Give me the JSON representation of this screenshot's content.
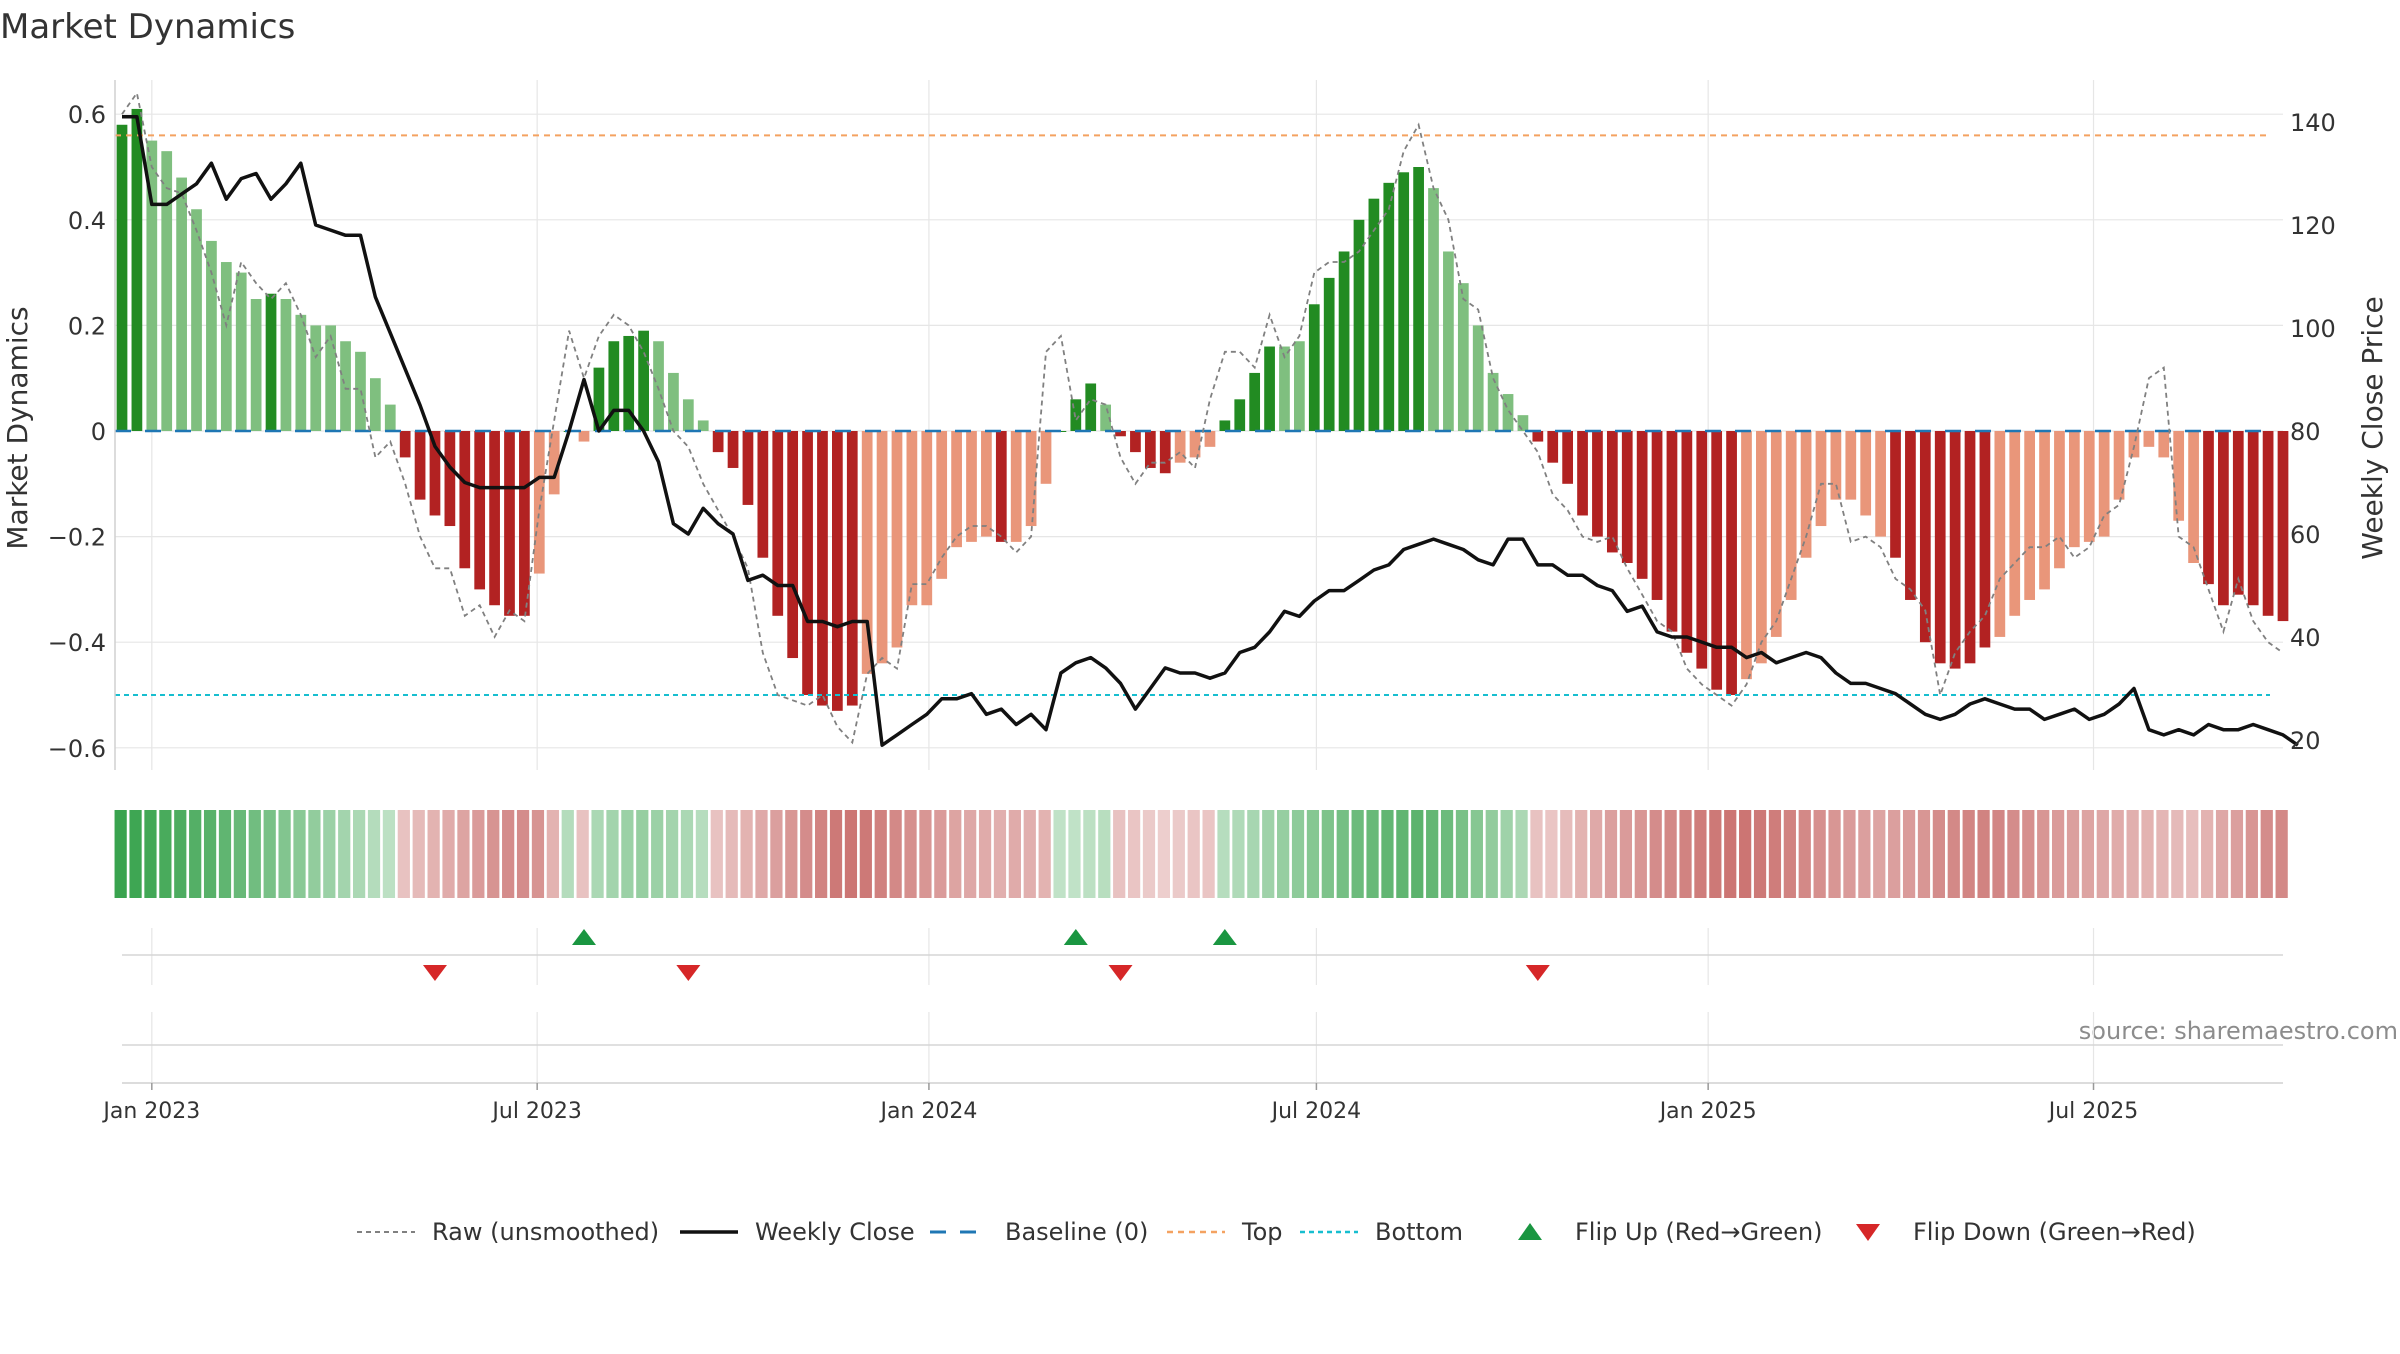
{
  "title": "Market Dynamics",
  "source": "source: sharemaestro.com",
  "colors": {
    "strong_green": "#228b22",
    "light_green": "#7fbf7f",
    "strong_red": "#b22222",
    "light_red": "#e9967a",
    "close_line": "#111111",
    "raw_line": "#808080",
    "baseline": "#1f77b4",
    "top": "#f4a261",
    "bottom": "#17becf",
    "flip_up": "#1a9641",
    "flip_down": "#d62728",
    "grid": "#e6e6e6"
  },
  "chart_data": {
    "type": "bar",
    "title": "Market Dynamics",
    "ylabel": "Market Dynamics",
    "y2label": "Weekly Close Price",
    "ylim": [
      -0.65,
      0.65
    ],
    "y2lim": [
      17,
      146
    ],
    "yticks": [
      0.6,
      0.4,
      0.2,
      0,
      -0.2,
      -0.4,
      -0.6
    ],
    "ytick_labels": [
      "0.6",
      "0.4",
      "0.2",
      "0",
      "−0.2",
      "−0.4",
      "−0.6"
    ],
    "y2ticks": [
      140,
      120,
      100,
      80,
      60,
      40,
      20
    ],
    "xticks": [
      {
        "date": "2023-01-01",
        "label": "Jan 2023"
      },
      {
        "date": "2023-07-01",
        "label": "Jul 2023"
      },
      {
        "date": "2024-01-01",
        "label": "Jan 2024"
      },
      {
        "date": "2024-07-01",
        "label": "Jul 2024"
      },
      {
        "date": "2025-01-01",
        "label": "Jan 2025"
      },
      {
        "date": "2025-07-01",
        "label": "Jul 2025"
      }
    ],
    "grid": true,
    "legend_position": "bottom",
    "first_week": "2022-12-18",
    "last_week": "2025-09-28",
    "reference_lines": {
      "baseline": 0,
      "top": 0.56,
      "bottom": -0.5
    },
    "momentum": [
      0.58,
      0.61,
      0.55,
      0.53,
      0.48,
      0.42,
      0.36,
      0.32,
      0.3,
      0.25,
      0.26,
      0.25,
      0.22,
      0.2,
      0.2,
      0.17,
      0.15,
      0.1,
      0.05,
      -0.05,
      -0.13,
      -0.16,
      -0.18,
      -0.26,
      -0.3,
      -0.33,
      -0.35,
      -0.35,
      -0.27,
      -0.12,
      0.0,
      -0.02,
      0.12,
      0.17,
      0.18,
      0.19,
      0.17,
      0.11,
      0.06,
      0.02,
      -0.04,
      -0.07,
      -0.14,
      -0.24,
      -0.35,
      -0.43,
      -0.5,
      -0.52,
      -0.53,
      -0.52,
      -0.46,
      -0.44,
      -0.41,
      -0.33,
      -0.33,
      -0.28,
      -0.22,
      -0.21,
      -0.2,
      -0.21,
      -0.21,
      -0.18,
      -0.1,
      0.0,
      0.06,
      0.09,
      0.05,
      -0.01,
      -0.04,
      -0.07,
      -0.08,
      -0.06,
      -0.05,
      -0.03,
      0.02,
      0.06,
      0.11,
      0.16,
      0.16,
      0.17,
      0.24,
      0.29,
      0.34,
      0.4,
      0.44,
      0.47,
      0.49,
      0.5,
      0.46,
      0.34,
      0.28,
      0.2,
      0.11,
      0.07,
      0.03,
      -0.02,
      -0.06,
      -0.1,
      -0.16,
      -0.2,
      -0.23,
      -0.25,
      -0.28,
      -0.32,
      -0.38,
      -0.42,
      -0.45,
      -0.49,
      -0.5,
      -0.47,
      -0.44,
      -0.39,
      -0.32,
      -0.24,
      -0.18,
      -0.13,
      -0.13,
      -0.16,
      -0.2,
      -0.24,
      -0.32,
      -0.4,
      -0.44,
      -0.45,
      -0.44,
      -0.41,
      -0.39,
      -0.35,
      -0.32,
      -0.3,
      -0.26,
      -0.22,
      -0.21,
      -0.2,
      -0.13,
      -0.05,
      -0.03,
      -0.05,
      -0.17,
      -0.25,
      -0.29,
      -0.33,
      -0.31,
      -0.33,
      -0.35,
      -0.36
    ],
    "colors": [
      "dg",
      "dg",
      "lg",
      "lg",
      "lg",
      "lg",
      "lg",
      "lg",
      "lg",
      "lg",
      "dg",
      "lg",
      "lg",
      "lg",
      "lg",
      "lg",
      "lg",
      "lg",
      "lg",
      "dr",
      "dr",
      "dr",
      "dr",
      "dr",
      "dr",
      "dr",
      "dr",
      "dr",
      "lr",
      "lr",
      "dg",
      "lr",
      "dg",
      "dg",
      "dg",
      "dg",
      "lg",
      "lg",
      "lg",
      "lg",
      "dr",
      "dr",
      "dr",
      "dr",
      "dr",
      "dr",
      "dr",
      "dr",
      "dr",
      "dr",
      "lr",
      "lr",
      "lr",
      "lr",
      "lr",
      "lr",
      "lr",
      "lr",
      "lr",
      "dr",
      "lr",
      "lr",
      "lr",
      "dg",
      "dg",
      "dg",
      "lg",
      "dr",
      "dr",
      "dr",
      "dr",
      "lr",
      "lr",
      "lr",
      "dg",
      "dg",
      "dg",
      "dg",
      "lg",
      "lg",
      "dg",
      "dg",
      "dg",
      "dg",
      "dg",
      "dg",
      "dg",
      "dg",
      "lg",
      "lg",
      "lg",
      "lg",
      "lg",
      "lg",
      "lg",
      "dr",
      "dr",
      "dr",
      "dr",
      "dr",
      "dr",
      "dr",
      "dr",
      "dr",
      "dr",
      "dr",
      "dr",
      "dr",
      "dr",
      "lr",
      "lr",
      "lr",
      "lr",
      "lr",
      "lr",
      "lr",
      "lr",
      "lr",
      "lr",
      "dr",
      "dr",
      "dr",
      "dr",
      "dr",
      "dr",
      "dr",
      "lr",
      "lr",
      "lr",
      "lr",
      "lr",
      "lr",
      "lr",
      "lr",
      "lr",
      "lr",
      "lr",
      "lr",
      "lr",
      "lr",
      "dr",
      "dr",
      "dr",
      "dr",
      "dr",
      "dr",
      "dr",
      "dr"
    ],
    "strip_alpha": [
      0.95,
      0.92,
      0.9,
      0.87,
      0.85,
      0.82,
      0.8,
      0.76,
      0.72,
      0.68,
      0.64,
      0.6,
      0.56,
      0.52,
      0.48,
      0.44,
      0.4,
      0.36,
      0.32,
      0.32,
      0.36,
      0.4,
      0.44,
      0.48,
      0.52,
      0.56,
      0.6,
      0.6,
      0.56,
      0.4,
      0.36,
      0.32,
      0.4,
      0.44,
      0.48,
      0.5,
      0.48,
      0.44,
      0.4,
      0.35,
      0.32,
      0.36,
      0.4,
      0.45,
      0.5,
      0.55,
      0.6,
      0.65,
      0.7,
      0.72,
      0.7,
      0.66,
      0.62,
      0.58,
      0.55,
      0.52,
      0.48,
      0.46,
      0.44,
      0.42,
      0.44,
      0.42,
      0.4,
      0.3,
      0.3,
      0.32,
      0.34,
      0.32,
      0.3,
      0.28,
      0.26,
      0.28,
      0.3,
      0.3,
      0.35,
      0.38,
      0.42,
      0.46,
      0.5,
      0.54,
      0.58,
      0.62,
      0.66,
      0.7,
      0.72,
      0.75,
      0.76,
      0.78,
      0.74,
      0.7,
      0.64,
      0.58,
      0.52,
      0.46,
      0.4,
      0.32,
      0.3,
      0.35,
      0.4,
      0.45,
      0.5,
      0.52,
      0.55,
      0.6,
      0.62,
      0.65,
      0.68,
      0.7,
      0.72,
      0.72,
      0.7,
      0.68,
      0.65,
      0.62,
      0.58,
      0.55,
      0.52,
      0.5,
      0.48,
      0.5,
      0.52,
      0.55,
      0.6,
      0.62,
      0.64,
      0.65,
      0.63,
      0.6,
      0.58,
      0.55,
      0.52,
      0.5,
      0.48,
      0.46,
      0.44,
      0.42,
      0.4,
      0.38,
      0.36,
      0.34,
      0.4,
      0.46,
      0.5,
      0.55,
      0.6,
      0.62,
      0.64,
      0.66
    ],
    "raw": [
      0.6,
      0.64,
      0.5,
      0.46,
      0.45,
      0.38,
      0.3,
      0.2,
      0.32,
      0.28,
      0.25,
      0.28,
      0.22,
      0.14,
      0.18,
      0.08,
      0.08,
      -0.05,
      -0.02,
      -0.1,
      -0.2,
      -0.26,
      -0.26,
      -0.35,
      -0.33,
      -0.39,
      -0.34,
      -0.36,
      -0.15,
      0.02,
      0.19,
      0.1,
      0.18,
      0.22,
      0.2,
      0.15,
      0.08,
      0.0,
      -0.03,
      -0.1,
      -0.15,
      -0.2,
      -0.26,
      -0.42,
      -0.5,
      -0.51,
      -0.52,
      -0.5,
      -0.56,
      -0.59,
      -0.46,
      -0.43,
      -0.45,
      -0.29,
      -0.29,
      -0.24,
      -0.2,
      -0.18,
      -0.18,
      -0.2,
      -0.23,
      -0.2,
      0.15,
      0.18,
      0.02,
      0.06,
      0.05,
      -0.05,
      -0.1,
      -0.06,
      -0.06,
      -0.04,
      -0.07,
      0.06,
      0.15,
      0.15,
      0.12,
      0.22,
      0.14,
      0.18,
      0.3,
      0.32,
      0.32,
      0.34,
      0.38,
      0.42,
      0.53,
      0.58,
      0.46,
      0.4,
      0.25,
      0.23,
      0.1,
      0.04,
      0.0,
      -0.04,
      -0.12,
      -0.15,
      -0.2,
      -0.21,
      -0.2,
      -0.26,
      -0.31,
      -0.36,
      -0.38,
      -0.45,
      -0.48,
      -0.5,
      -0.52,
      -0.48,
      -0.4,
      -0.36,
      -0.28,
      -0.2,
      -0.1,
      -0.1,
      -0.21,
      -0.2,
      -0.22,
      -0.28,
      -0.3,
      -0.34,
      -0.5,
      -0.42,
      -0.38,
      -0.35,
      -0.28,
      -0.25,
      -0.22,
      -0.22,
      -0.2,
      -0.24,
      -0.22,
      -0.16,
      -0.14,
      -0.03,
      0.1,
      0.12,
      -0.2,
      -0.22,
      -0.3,
      -0.38,
      -0.28,
      -0.36,
      -0.4,
      -0.42
    ],
    "close": [
      141,
      141,
      124,
      124,
      126,
      128,
      132,
      125,
      129,
      130,
      125,
      128,
      132,
      120,
      119,
      118,
      118,
      106,
      99,
      92,
      85,
      77,
      73,
      70,
      69,
      69,
      69,
      69,
      71,
      71,
      80,
      90,
      80,
      84,
      84,
      80,
      74,
      62,
      60,
      65,
      62,
      60,
      51,
      52,
      50,
      50,
      43,
      43,
      42,
      43,
      43,
      19,
      21,
      23,
      25,
      28,
      28,
      29,
      25,
      26,
      23,
      25,
      22,
      33,
      35,
      36,
      34,
      31,
      26,
      30,
      34,
      33,
      33,
      32,
      33,
      37,
      38,
      41,
      45,
      44,
      47,
      49,
      49,
      51,
      53,
      54,
      57,
      58,
      59,
      58,
      57,
      55,
      54,
      59,
      59,
      54,
      54,
      52,
      52,
      50,
      49,
      45,
      46,
      41,
      40,
      40,
      39,
      38,
      38,
      36,
      37,
      35,
      36,
      37,
      36,
      33,
      31,
      31,
      30,
      29,
      27,
      25,
      24,
      25,
      27,
      28,
      27,
      26,
      26,
      24,
      25,
      26,
      24,
      25,
      27,
      30,
      22,
      21,
      22,
      21,
      23,
      22,
      22,
      23,
      22,
      21,
      19
    ],
    "flips_up": [
      "2023-07-23",
      "2024-03-10",
      "2024-05-19"
    ],
    "flips_down": [
      "2023-05-14",
      "2023-09-10",
      "2024-03-31",
      "2024-10-13"
    ]
  },
  "legend": [
    {
      "key": "raw",
      "label": "Raw (unsmoothed)"
    },
    {
      "key": "close",
      "label": "Weekly Close"
    },
    {
      "key": "baseline",
      "label": "Baseline (0)"
    },
    {
      "key": "top",
      "label": "Top"
    },
    {
      "key": "bottom",
      "label": "Bottom"
    },
    {
      "key": "flip_up",
      "label": "Flip Up (Red→Green)"
    },
    {
      "key": "flip_down",
      "label": "Flip Down (Green→Red)"
    }
  ]
}
